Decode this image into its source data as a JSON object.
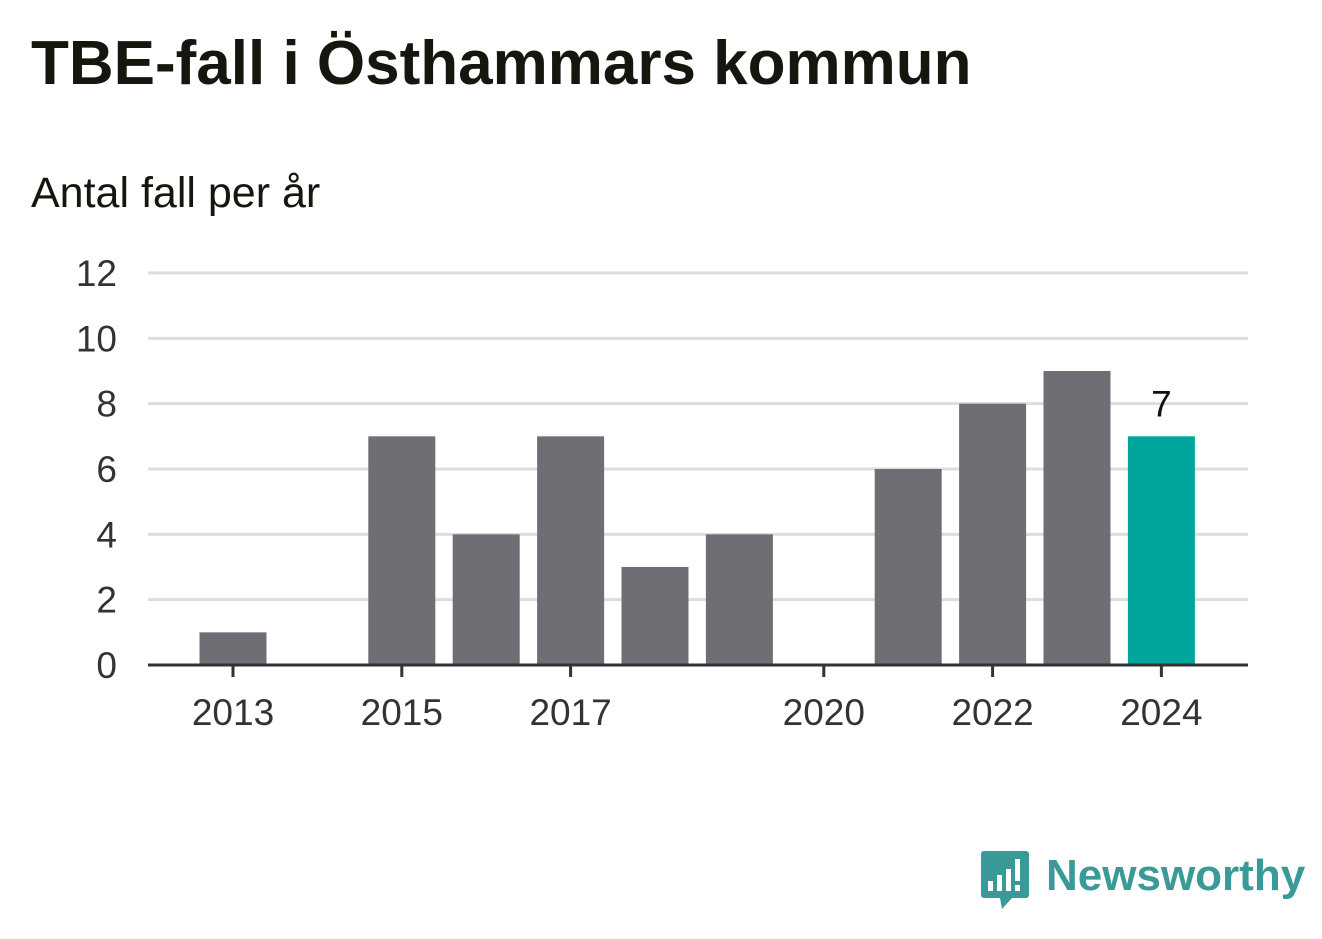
{
  "title": "TBE-fall i Östhammars kommun",
  "subtitle": "Antal fall per år",
  "brand": {
    "name": "Newsworthy",
    "icon": "newsworthy-logo-icon",
    "color": "#3a9a98"
  },
  "chart_data": {
    "type": "bar",
    "categories": [
      "2013",
      "2014",
      "2015",
      "2016",
      "2017",
      "2018",
      "2019",
      "2020",
      "2021",
      "2022",
      "2023",
      "2024"
    ],
    "values": [
      1,
      0,
      7,
      4,
      7,
      3,
      4,
      0,
      6,
      8,
      9,
      7
    ],
    "x_tick_labels": [
      "2013",
      "2015",
      "2017",
      "2020",
      "2022",
      "2024"
    ],
    "y_ticks": [
      0,
      2,
      4,
      6,
      8,
      10,
      12
    ],
    "ylim": [
      0,
      12
    ],
    "grid": true,
    "highlight": {
      "category": "2024",
      "label": "7"
    },
    "colors": {
      "bar": "#6f6e74",
      "highlight": "#00a59b",
      "grid": "#dddddd",
      "axis": "#333333",
      "tick_label": "#333333"
    }
  }
}
